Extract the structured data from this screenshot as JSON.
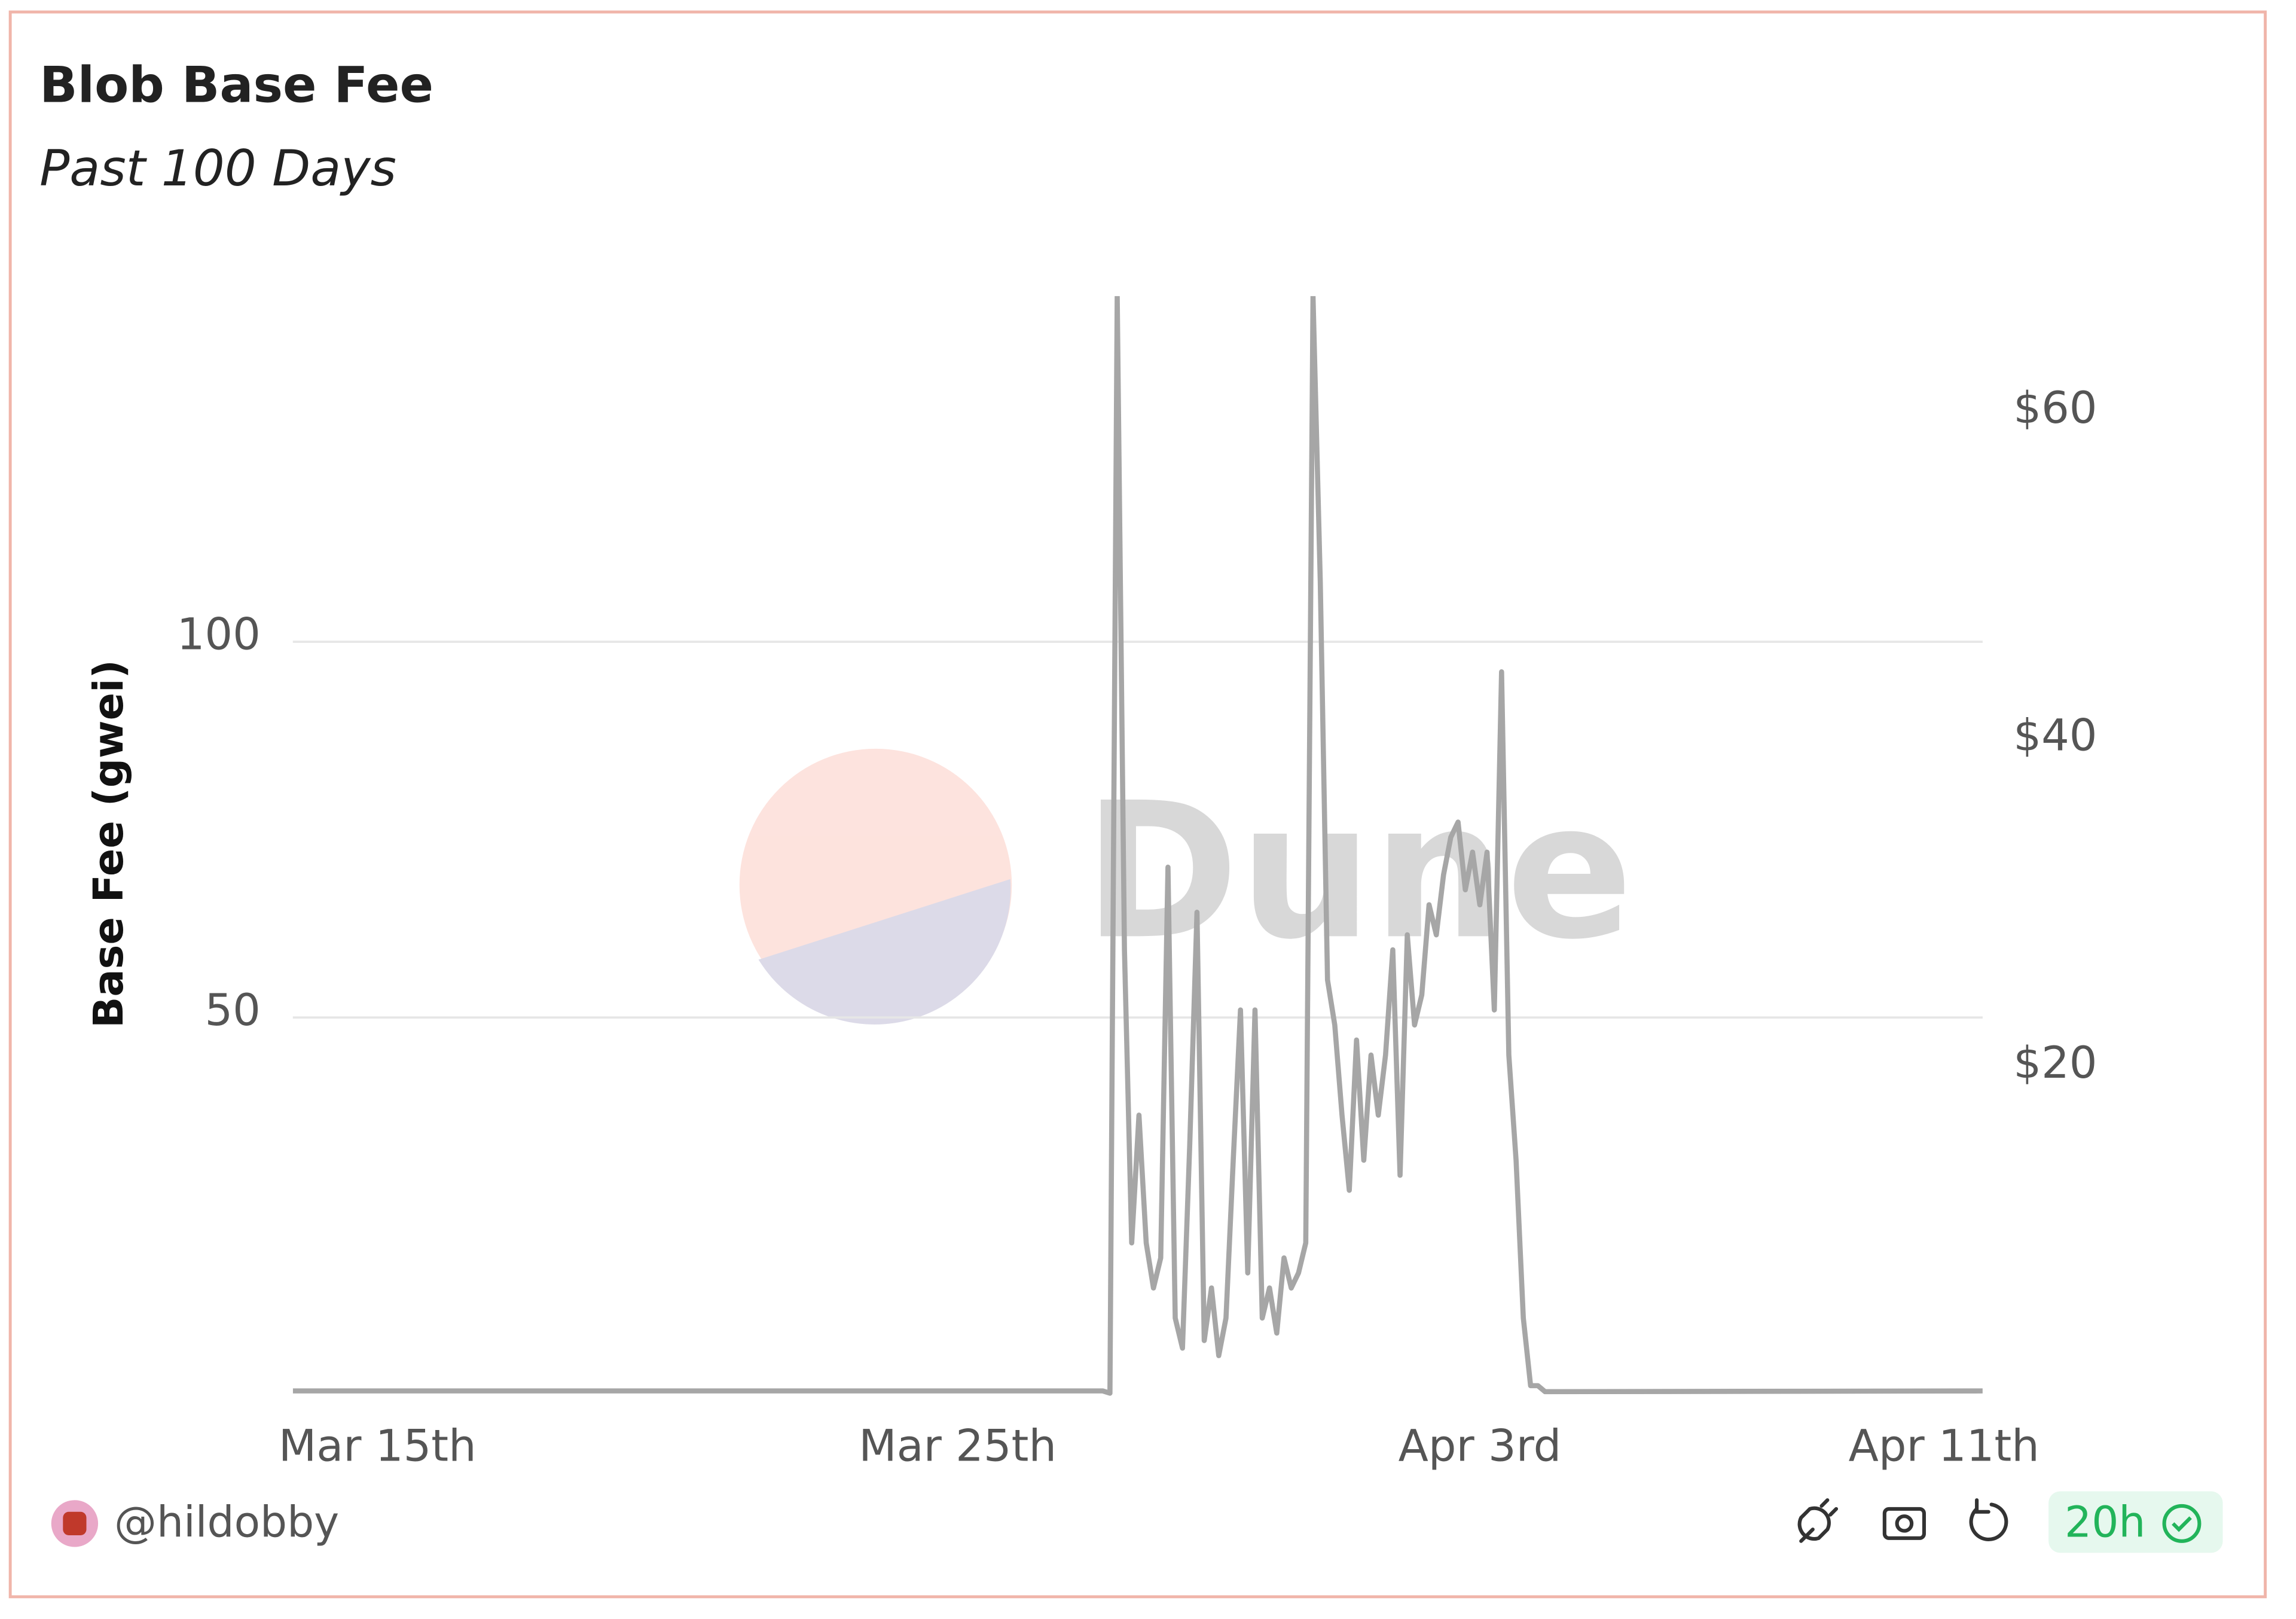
{
  "chart_data": {
    "type": "line",
    "title": "Blob Base Fee",
    "subtitle": "Past 100 Days",
    "y_label": "Base Fee (gwei)",
    "watermark": "Dune",
    "author": "@hildobby",
    "refresh": "20h",
    "x": [
      "Mar 13 13:00",
      "Mar 27 12:00",
      "Mar 27 15:00",
      "Mar 27 18:00",
      "Mar 27 21:00",
      "Mar 28 00:00",
      "Mar 28 03:00",
      "Mar 28 06:00",
      "Mar 28 09:00",
      "Mar 28 12:00",
      "Mar 28 15:00",
      "Mar 28 18:00",
      "Mar 28 21:00",
      "Mar 29 00:00",
      "Mar 29 03:00",
      "Mar 29 06:00",
      "Mar 29 09:00",
      "Mar 29 12:00",
      "Mar 29 15:00",
      "Mar 29 18:00",
      "Mar 29 21:00",
      "Mar 30 00:00",
      "Mar 30 03:00",
      "Mar 30 06:00",
      "Mar 30 09:00",
      "Mar 30 12:00",
      "Mar 30 15:00",
      "Mar 30 18:00",
      "Mar 30 21:00",
      "Mar 31 00:00",
      "Mar 31 03:00",
      "Mar 31 06:00",
      "Mar 31 09:00",
      "Mar 31 12:00",
      "Mar 31 15:00",
      "Mar 31 18:00",
      "Mar 31 21:00",
      "Apr 1 00:00",
      "Apr 1 03:00",
      "Apr 1 06:00",
      "Apr 1 09:00",
      "Apr 1 12:00",
      "Apr 1 15:00",
      "Apr 1 18:00",
      "Apr 1 21:00",
      "Apr 2 00:00",
      "Apr 2 03:00",
      "Apr 2 06:00",
      "Apr 2 09:00",
      "Apr 2 12:00",
      "Apr 2 15:00",
      "Apr 2 18:00",
      "Apr 2 21:00",
      "Apr 3 00:00",
      "Apr 3 03:00",
      "Apr 3 06:00",
      "Apr 3 09:00",
      "Apr 3 12:00",
      "Apr 3 15:00",
      "Apr 3 18:00",
      "Apr 3 21:00",
      "Apr 4 00:00",
      "Apr 4 03:00",
      "Apr 11 16:00"
    ],
    "series": [
      {
        "color": "#a6a6a6",
        "values": [
          0.3,
          0.3,
          0,
          146,
          59,
          20,
          37,
          20,
          14,
          18,
          70,
          10,
          6,
          33,
          64,
          7,
          14,
          5,
          10,
          31,
          51,
          16,
          51,
          10,
          14,
          8,
          18,
          14,
          16,
          20,
          146,
          108,
          55,
          49,
          37,
          27,
          47,
          31,
          45,
          37,
          45,
          59,
          29,
          61,
          49,
          53,
          65,
          61,
          69,
          74,
          76,
          67,
          72,
          65,
          72,
          51,
          96,
          45,
          31,
          10,
          1,
          1,
          0.2,
          0.3
        ]
      }
    ],
    "xlim": [
      "Mar 13 13:00",
      "Apr 11 16:00"
    ],
    "xticks": [
      {
        "value": "Mar 15",
        "label": "Mar 15th"
      },
      {
        "value": "Mar 25",
        "label": "Mar 25th"
      },
      {
        "value": "Apr 3",
        "label": "Apr 3rd"
      },
      {
        "value": "Apr 11",
        "label": "Apr 11th"
      }
    ],
    "ylim": [
      0,
      146
    ],
    "yticks": [
      50,
      100
    ],
    "y2lim": [
      0,
      67
    ],
    "y2ticks": [
      {
        "value": 20,
        "label": "$20"
      },
      {
        "value": 40,
        "label": "$40"
      },
      {
        "value": 60,
        "label": "$60"
      }
    ],
    "grid": true
  }
}
